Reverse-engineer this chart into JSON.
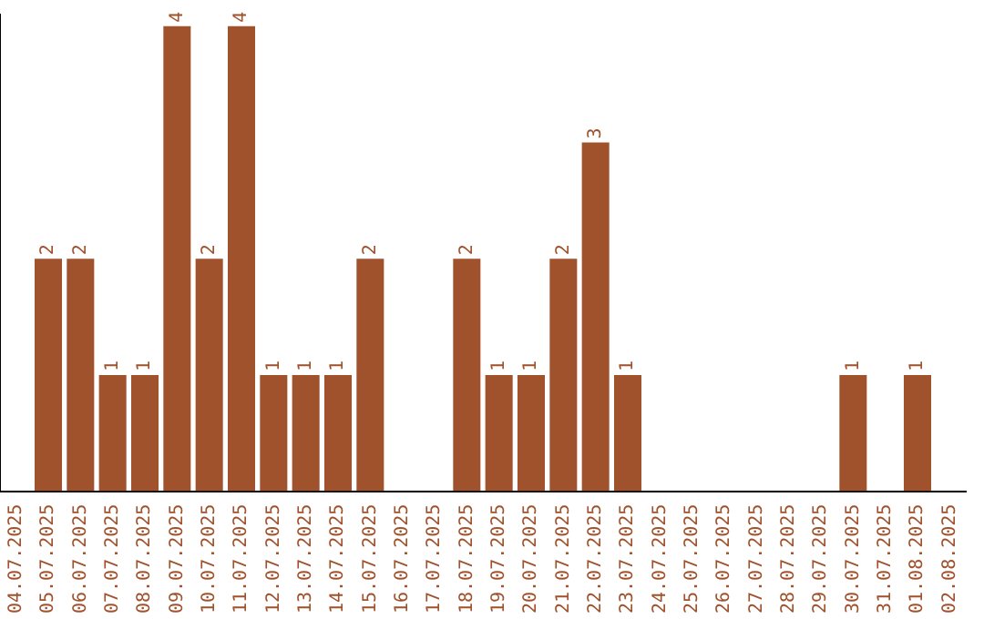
{
  "chart_data": {
    "type": "bar",
    "categories": [
      "04.07.2025",
      "05.07.2025",
      "06.07.2025",
      "07.07.2025",
      "08.07.2025",
      "09.07.2025",
      "10.07.2025",
      "11.07.2025",
      "12.07.2025",
      "13.07.2025",
      "14.07.2025",
      "15.07.2025",
      "16.07.2025",
      "17.07.2025",
      "18.07.2025",
      "19.07.2025",
      "20.07.2025",
      "21.07.2025",
      "22.07.2025",
      "23.07.2025",
      "24.07.2025",
      "25.07.2025",
      "26.07.2025",
      "27.07.2025",
      "28.07.2025",
      "29.07.2025",
      "30.07.2025",
      "31.07.2025",
      "01.08.2025",
      "02.08.2025"
    ],
    "values": [
      0,
      2,
      2,
      1,
      1,
      4,
      2,
      4,
      1,
      1,
      1,
      2,
      0,
      0,
      2,
      1,
      1,
      2,
      3,
      1,
      0,
      0,
      0,
      0,
      0,
      0,
      1,
      0,
      1,
      0
    ],
    "value_labels": [
      null,
      "2",
      "2",
      "1",
      "1",
      "4",
      "2",
      "4",
      "1",
      "1",
      "1",
      "2",
      null,
      null,
      "2",
      "1",
      "1",
      "2",
      "3",
      "1",
      null,
      null,
      null,
      null,
      null,
      null,
      "1",
      null,
      "1",
      null
    ],
    "color": "#a0522d",
    "ylim": [
      0,
      4.1
    ],
    "tick_labels": "x",
    "grid": false,
    "legend": false
  }
}
